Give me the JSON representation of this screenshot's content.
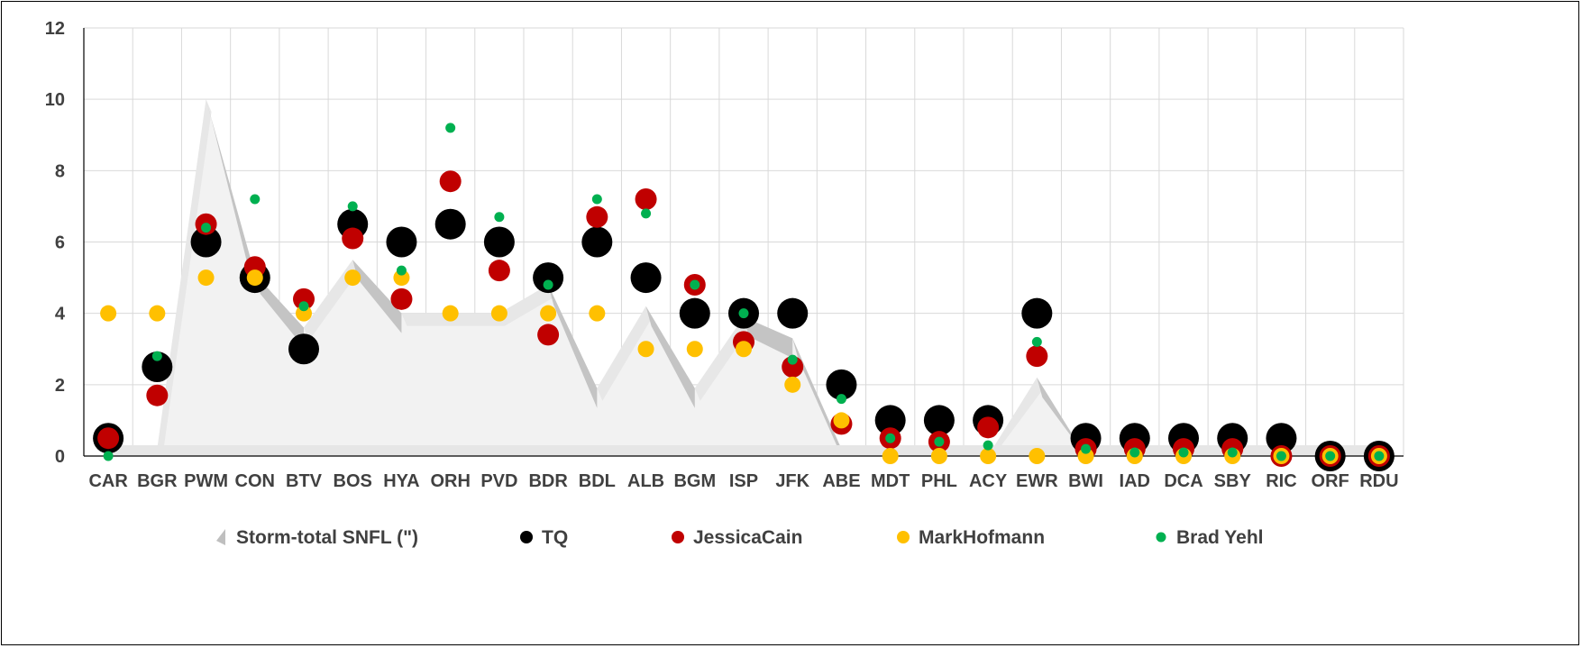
{
  "chart_data": {
    "type": "scatter",
    "ylim": [
      0,
      12
    ],
    "yticks": [
      0,
      2,
      4,
      6,
      8,
      10,
      12
    ],
    "grid": true,
    "legend_position": "bottom",
    "categories": [
      "CAR",
      "BGR",
      "PWM",
      "CON",
      "BTV",
      "BOS",
      "HYA",
      "ORH",
      "PVD",
      "BDR",
      "BDL",
      "ALB",
      "BGM",
      "ISP",
      "JFK",
      "ABE",
      "MDT",
      "PHL",
      "ACY",
      "EWR",
      "BWI",
      "IAD",
      "DCA",
      "SBY",
      "RIC",
      "ORF",
      "RDU"
    ],
    "series": [
      {
        "name": "Storm-total SNFL (\")",
        "kind": "area",
        "color": "#e8e8e8",
        "values": [
          0.2,
          0.2,
          10.0,
          5.1,
          3.6,
          5.5,
          4.0,
          4.0,
          4.0,
          4.8,
          1.9,
          4.2,
          1.9,
          3.9,
          3.3,
          0.2,
          0.0,
          0.0,
          0.0,
          2.2,
          0.0,
          0.0,
          0.0,
          0.0,
          0.0,
          0.0,
          0.0
        ]
      },
      {
        "name": "TQ",
        "kind": "marker",
        "color": "#000000",
        "size": 17,
        "values": [
          0.5,
          2.5,
          6.0,
          5.0,
          3.0,
          6.5,
          6.0,
          6.5,
          6.0,
          5.0,
          6.0,
          5.0,
          4.0,
          4.0,
          4.0,
          2.0,
          1.0,
          1.0,
          1.0,
          4.0,
          0.5,
          0.5,
          0.5,
          0.5,
          0.5,
          0.0,
          0.0
        ]
      },
      {
        "name": "JessicaCain",
        "kind": "marker",
        "color": "#c00000",
        "size": 12,
        "values": [
          0.5,
          1.7,
          6.5,
          5.3,
          4.4,
          6.1,
          4.4,
          7.7,
          5.2,
          3.4,
          6.7,
          7.2,
          4.8,
          3.2,
          2.5,
          0.9,
          0.5,
          0.4,
          0.8,
          2.8,
          0.2,
          0.2,
          0.2,
          0.2,
          0.0,
          0.0,
          0.0
        ]
      },
      {
        "name": "MarkHofmann",
        "kind": "marker",
        "color": "#ffc000",
        "size": 9,
        "values": [
          4.0,
          4.0,
          5.0,
          5.0,
          4.0,
          5.0,
          5.0,
          4.0,
          4.0,
          4.0,
          4.0,
          3.0,
          3.0,
          3.0,
          2.0,
          1.0,
          0.0,
          0.0,
          0.0,
          0.0,
          0.0,
          0.0,
          0.0,
          0.0,
          0.0,
          0.0,
          0.0
        ]
      },
      {
        "name": "Brad Yehl",
        "kind": "marker",
        "color": "#00b050",
        "size": 5.5,
        "values": [
          0.0,
          2.8,
          6.4,
          7.2,
          4.2,
          7.0,
          5.2,
          9.2,
          6.7,
          4.8,
          7.2,
          6.8,
          4.8,
          4.0,
          2.7,
          1.6,
          0.5,
          0.4,
          0.3,
          3.2,
          0.2,
          0.1,
          0.1,
          0.1,
          0.0,
          0.0,
          0.0
        ]
      }
    ]
  }
}
